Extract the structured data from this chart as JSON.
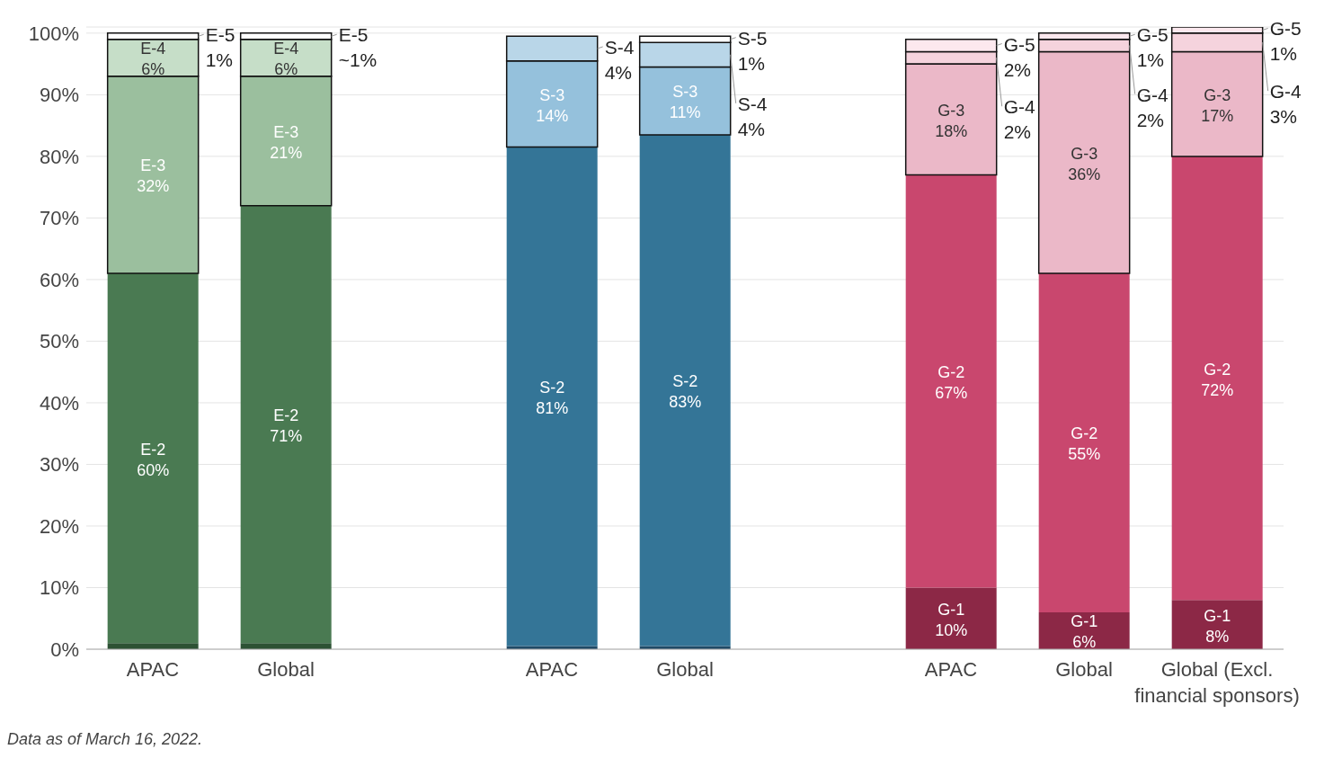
{
  "chart_data": {
    "type": "bar",
    "stacked": true,
    "categories": [
      "APAC",
      "Global",
      null,
      "APAC",
      "Global",
      null,
      "APAC",
      "Global",
      "Global (Excl. financial sponsors)"
    ],
    "series": [
      {
        "color": "#2d5234",
        "values": [
          1,
          1,
          null,
          null,
          null,
          null,
          null,
          null,
          null
        ]
      },
      {
        "name": "E-2",
        "color": "#4a7a52",
        "values": [
          60,
          71,
          null,
          null,
          null,
          null,
          null,
          null,
          null
        ],
        "value_labels": [
          "60%",
          "71%",
          null,
          null,
          null,
          null,
          null,
          null,
          null
        ]
      },
      {
        "name": "E-3",
        "color": "#9bbf9e",
        "values": [
          32,
          21,
          null,
          null,
          null,
          null,
          null,
          null,
          null
        ],
        "value_labels": [
          "32%",
          "21%",
          null,
          null,
          null,
          null,
          null,
          null,
          null
        ]
      },
      {
        "name": "E-4",
        "color": "#c6dec8",
        "values": [
          6,
          6,
          null,
          null,
          null,
          null,
          null,
          null,
          null
        ],
        "value_labels": [
          "6%",
          "6%",
          null,
          null,
          null,
          null,
          null,
          null,
          null
        ]
      },
      {
        "name": "E-5",
        "color": "#ffffff",
        "values": [
          1,
          1,
          null,
          null,
          null,
          null,
          null,
          null,
          null
        ],
        "value_labels": [
          "1%",
          "~1%",
          null,
          null,
          null,
          null,
          null,
          null,
          null
        ]
      },
      {
        "color": "#1f4a66",
        "values": [
          null,
          null,
          null,
          0.5,
          0.5,
          null,
          null,
          null,
          null
        ]
      },
      {
        "name": "S-2",
        "color": "#347597",
        "values": [
          null,
          null,
          null,
          81,
          83,
          null,
          null,
          null,
          null
        ],
        "value_labels": [
          null,
          null,
          null,
          "81%",
          "83%",
          null,
          null,
          null,
          null
        ]
      },
      {
        "name": "S-3",
        "color": "#95c1dc",
        "values": [
          null,
          null,
          null,
          14,
          11,
          null,
          null,
          null,
          null
        ],
        "value_labels": [
          null,
          null,
          null,
          "14%",
          "11%",
          null,
          null,
          null,
          null
        ]
      },
      {
        "name": "S-4",
        "color": "#b9d6e8",
        "values": [
          null,
          null,
          null,
          4,
          4,
          null,
          null,
          null,
          null
        ],
        "value_labels": [
          null,
          null,
          null,
          "4%",
          "4%",
          null,
          null,
          null,
          null
        ]
      },
      {
        "name": "S-5",
        "color": "#ffffff",
        "values": [
          null,
          null,
          null,
          null,
          1,
          null,
          null,
          null,
          null
        ],
        "value_labels": [
          null,
          null,
          null,
          null,
          "1%",
          null,
          null,
          null,
          null
        ]
      },
      {
        "name": "G-1",
        "color": "#8c2846",
        "values": [
          null,
          null,
          null,
          null,
          null,
          null,
          10,
          6,
          8
        ],
        "value_labels": [
          null,
          null,
          null,
          null,
          null,
          null,
          "10%",
          "6%",
          "8%"
        ]
      },
      {
        "name": "G-2",
        "color": "#c9476e",
        "values": [
          null,
          null,
          null,
          null,
          null,
          null,
          67,
          55,
          72
        ],
        "value_labels": [
          null,
          null,
          null,
          null,
          null,
          null,
          "67%",
          "55%",
          "72%"
        ]
      },
      {
        "name": "G-3",
        "color": "#ebb8c8",
        "values": [
          null,
          null,
          null,
          null,
          null,
          null,
          18,
          36,
          17
        ],
        "value_labels": [
          null,
          null,
          null,
          null,
          null,
          null,
          "18%",
          "36%",
          "17%"
        ]
      },
      {
        "name": "G-4",
        "color": "#f5d3dd",
        "values": [
          null,
          null,
          null,
          null,
          null,
          null,
          2,
          2,
          3
        ],
        "value_labels": [
          null,
          null,
          null,
          null,
          null,
          null,
          "2%",
          "2%",
          "3%"
        ]
      },
      {
        "name": "G-5",
        "color": "#fce8ee",
        "values": [
          null,
          null,
          null,
          null,
          null,
          null,
          2,
          1,
          1
        ],
        "value_labels": [
          null,
          null,
          null,
          null,
          null,
          null,
          "2%",
          "1%",
          "1%"
        ]
      }
    ],
    "ylim": [
      0,
      101
    ],
    "yticks": [
      {
        "value": 0,
        "label": "0%"
      },
      {
        "value": 10,
        "label": "10%"
      },
      {
        "value": 20,
        "label": "20%"
      },
      {
        "value": 30,
        "label": "30%"
      },
      {
        "value": 40,
        "label": "40%"
      },
      {
        "value": 50,
        "label": "50%"
      },
      {
        "value": 60,
        "label": "60%"
      },
      {
        "value": 70,
        "label": "70%"
      },
      {
        "value": 80,
        "label": "80%"
      },
      {
        "value": 90,
        "label": "90%"
      },
      {
        "value": 100,
        "label": "100%"
      }
    ],
    "grid": "y",
    "legend": false,
    "annotations": [
      "Data as of March 16, 2022."
    ]
  }
}
